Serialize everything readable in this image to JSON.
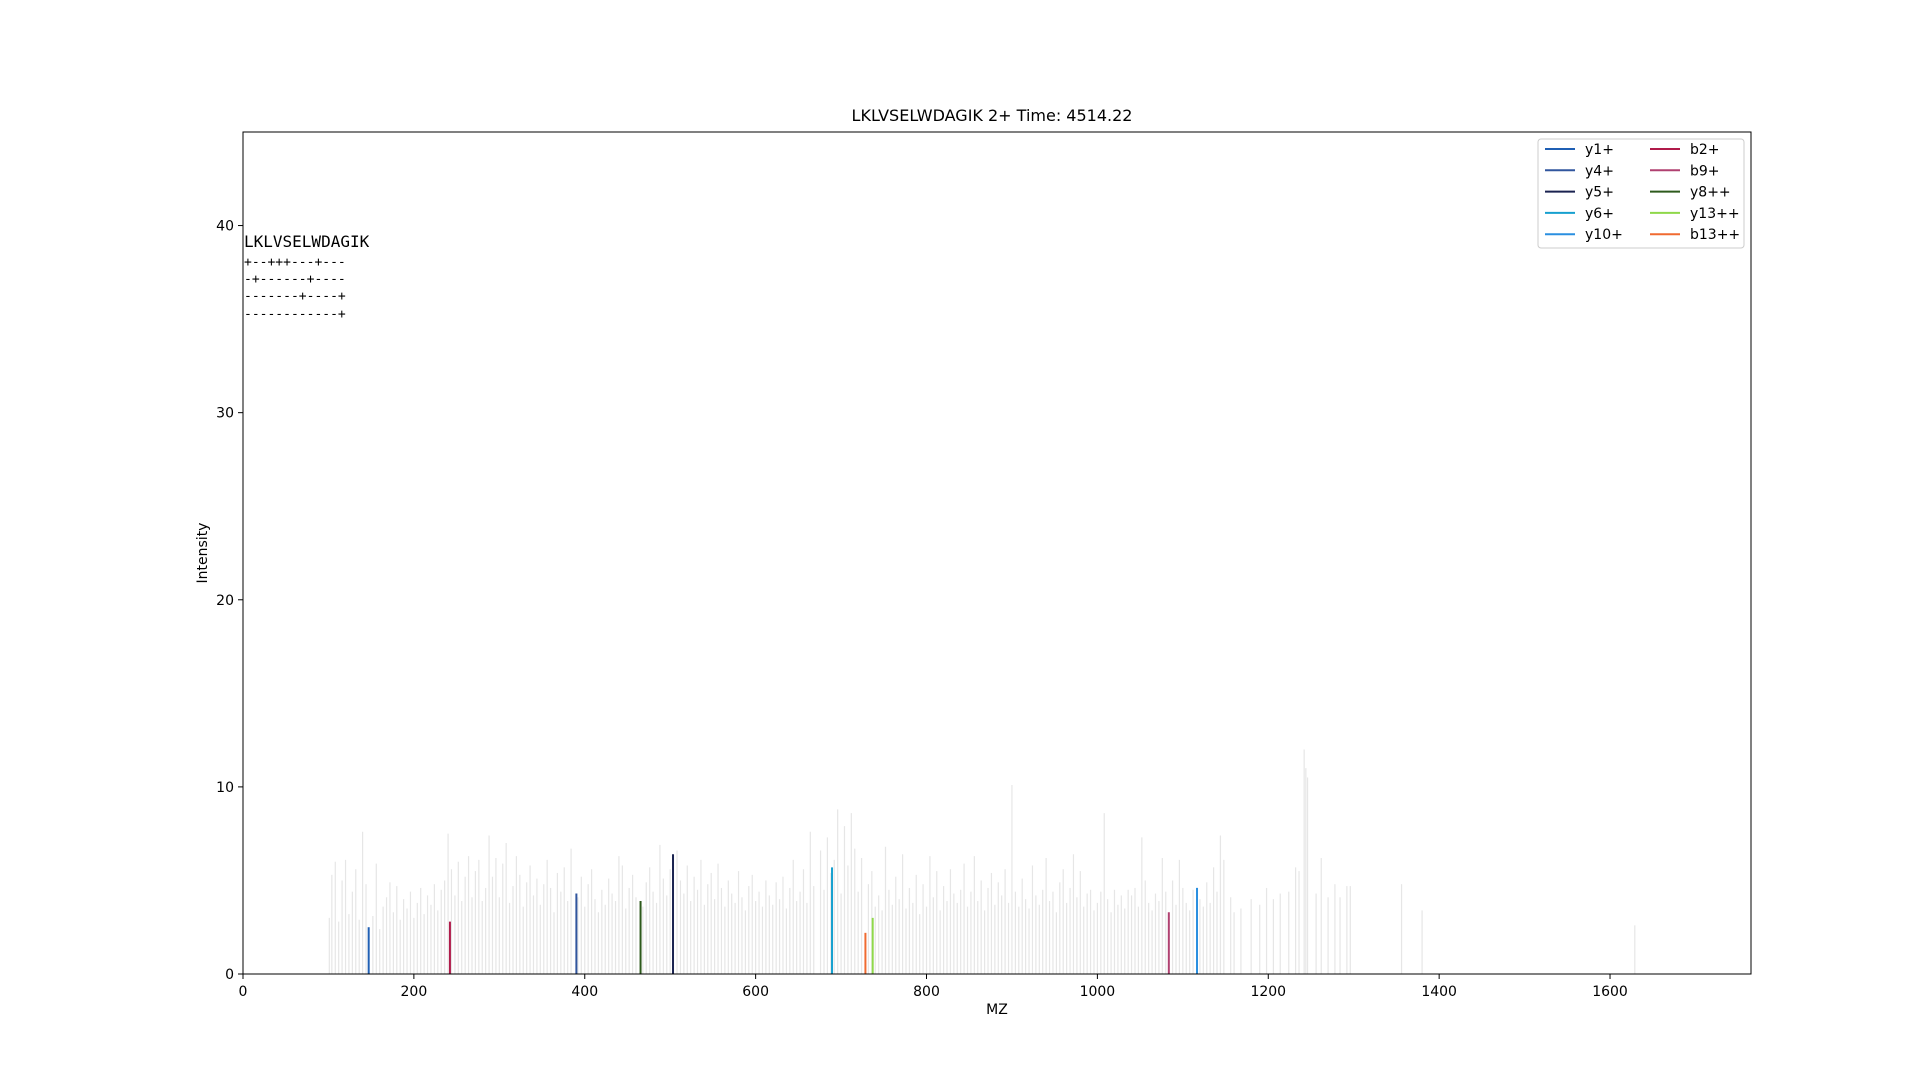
{
  "chart_data": {
    "type": "bar",
    "title": "LKLVSELWDAGIK  2+ Time: 4514.22",
    "xlabel": "MZ",
    "ylabel": "Intensity",
    "xlim": [
      0,
      1765
    ],
    "ylim": [
      0,
      45
    ],
    "x_ticks": [
      "0",
      "200",
      "400",
      "600",
      "800",
      "1000",
      "1200",
      "1400",
      "1600"
    ],
    "y_ticks": [
      "0",
      "10",
      "20",
      "30",
      "40"
    ],
    "legend_position": "top-right",
    "background_peak_color": "#e6e6e6",
    "background_peaks": [
      [
        101,
        3.0
      ],
      [
        104,
        5.3
      ],
      [
        108,
        6.0
      ],
      [
        112,
        2.8
      ],
      [
        116,
        5.0
      ],
      [
        120,
        6.1
      ],
      [
        124,
        3.2
      ],
      [
        128,
        4.4
      ],
      [
        132,
        5.6
      ],
      [
        136,
        2.9
      ],
      [
        140,
        7.6
      ],
      [
        144,
        4.8
      ],
      [
        152,
        3.1
      ],
      [
        156,
        5.9
      ],
      [
        160,
        2.4
      ],
      [
        164,
        3.6
      ],
      [
        168,
        4.1
      ],
      [
        172,
        4.9
      ],
      [
        176,
        3.3
      ],
      [
        180,
        4.7
      ],
      [
        184,
        2.9
      ],
      [
        188,
        4.0
      ],
      [
        192,
        3.5
      ],
      [
        196,
        4.4
      ],
      [
        200,
        3.0
      ],
      [
        204,
        3.8
      ],
      [
        208,
        4.6
      ],
      [
        212,
        3.2
      ],
      [
        216,
        4.2
      ],
      [
        220,
        3.7
      ],
      [
        224,
        4.8
      ],
      [
        228,
        3.4
      ],
      [
        232,
        4.5
      ],
      [
        236,
        5.0
      ],
      [
        240,
        7.5
      ],
      [
        244,
        5.6
      ],
      [
        248,
        4.2
      ],
      [
        252,
        6.0
      ],
      [
        256,
        3.9
      ],
      [
        260,
        5.2
      ],
      [
        264,
        6.3
      ],
      [
        268,
        4.1
      ],
      [
        272,
        5.5
      ],
      [
        276,
        6.1
      ],
      [
        280,
        3.9
      ],
      [
        284,
        4.6
      ],
      [
        288,
        7.4
      ],
      [
        292,
        5.2
      ],
      [
        296,
        6.2
      ],
      [
        300,
        4.1
      ],
      [
        304,
        5.9
      ],
      [
        308,
        7.0
      ],
      [
        312,
        3.8
      ],
      [
        316,
        4.7
      ],
      [
        320,
        6.3
      ],
      [
        324,
        5.3
      ],
      [
        328,
        3.6
      ],
      [
        332,
        4.9
      ],
      [
        336,
        5.8
      ],
      [
        340,
        4.2
      ],
      [
        344,
        5.1
      ],
      [
        348,
        3.7
      ],
      [
        352,
        4.8
      ],
      [
        356,
        6.1
      ],
      [
        360,
        4.6
      ],
      [
        364,
        3.3
      ],
      [
        368,
        5.4
      ],
      [
        372,
        4.4
      ],
      [
        376,
        5.7
      ],
      [
        380,
        3.9
      ],
      [
        384,
        6.7
      ],
      [
        392,
        4.1
      ],
      [
        396,
        5.2
      ],
      [
        400,
        3.6
      ],
      [
        404,
        4.8
      ],
      [
        408,
        5.6
      ],
      [
        412,
        4.0
      ],
      [
        416,
        3.3
      ],
      [
        420,
        4.5
      ],
      [
        424,
        3.7
      ],
      [
        428,
        5.1
      ],
      [
        432,
        4.3
      ],
      [
        436,
        3.9
      ],
      [
        440,
        6.3
      ],
      [
        444,
        5.8
      ],
      [
        448,
        3.5
      ],
      [
        452,
        4.6
      ],
      [
        456,
        5.3
      ],
      [
        460,
        4.1
      ],
      [
        468,
        3.6
      ],
      [
        472,
        4.9
      ],
      [
        476,
        5.7
      ],
      [
        480,
        4.4
      ],
      [
        484,
        3.8
      ],
      [
        488,
        6.9
      ],
      [
        492,
        5.1
      ],
      [
        496,
        4.2
      ],
      [
        500,
        5.6
      ],
      [
        508,
        6.6
      ],
      [
        512,
        5.0
      ],
      [
        516,
        4.3
      ],
      [
        520,
        5.8
      ],
      [
        524,
        3.9
      ],
      [
        528,
        5.2
      ],
      [
        532,
        4.5
      ],
      [
        536,
        6.1
      ],
      [
        540,
        3.7
      ],
      [
        544,
        4.8
      ],
      [
        548,
        5.4
      ],
      [
        552,
        4.0
      ],
      [
        556,
        5.9
      ],
      [
        560,
        4.6
      ],
      [
        564,
        3.6
      ],
      [
        568,
        5.0
      ],
      [
        572,
        4.3
      ],
      [
        576,
        3.8
      ],
      [
        580,
        5.5
      ],
      [
        584,
        4.1
      ],
      [
        588,
        3.4
      ],
      [
        592,
        4.7
      ],
      [
        596,
        5.3
      ],
      [
        600,
        3.9
      ],
      [
        604,
        4.4
      ],
      [
        608,
        3.6
      ],
      [
        612,
        5.0
      ],
      [
        616,
        4.2
      ],
      [
        620,
        3.7
      ],
      [
        624,
        4.9
      ],
      [
        628,
        4.0
      ],
      [
        632,
        5.2
      ],
      [
        636,
        3.5
      ],
      [
        640,
        4.6
      ],
      [
        644,
        6.1
      ],
      [
        648,
        3.9
      ],
      [
        652,
        4.4
      ],
      [
        656,
        5.6
      ],
      [
        660,
        3.8
      ],
      [
        664,
        7.6
      ],
      [
        668,
        4.7
      ],
      [
        676,
        6.6
      ],
      [
        680,
        4.5
      ],
      [
        684,
        7.3
      ],
      [
        688,
        5.4
      ],
      [
        692,
        6.1
      ],
      [
        696,
        8.8
      ],
      [
        700,
        4.3
      ],
      [
        704,
        7.9
      ],
      [
        708,
        5.8
      ],
      [
        712,
        8.6
      ],
      [
        716,
        6.7
      ],
      [
        720,
        4.4
      ],
      [
        724,
        6.2
      ],
      [
        732,
        4.8
      ],
      [
        736,
        5.5
      ],
      [
        740,
        3.6
      ],
      [
        744,
        4.2
      ],
      [
        748,
        3.4
      ],
      [
        752,
        6.8
      ],
      [
        756,
        4.5
      ],
      [
        760,
        3.7
      ],
      [
        764,
        5.2
      ],
      [
        768,
        4.0
      ],
      [
        772,
        6.4
      ],
      [
        776,
        3.5
      ],
      [
        780,
        4.6
      ],
      [
        784,
        3.8
      ],
      [
        788,
        5.3
      ],
      [
        792,
        3.2
      ],
      [
        796,
        4.8
      ],
      [
        800,
        3.6
      ],
      [
        804,
        6.3
      ],
      [
        808,
        4.1
      ],
      [
        812,
        5.5
      ],
      [
        816,
        3.4
      ],
      [
        820,
        4.7
      ],
      [
        824,
        3.9
      ],
      [
        828,
        5.6
      ],
      [
        832,
        4.3
      ],
      [
        836,
        3.8
      ],
      [
        840,
        4.5
      ],
      [
        844,
        5.9
      ],
      [
        848,
        3.6
      ],
      [
        852,
        4.4
      ],
      [
        856,
        6.3
      ],
      [
        860,
        3.9
      ],
      [
        864,
        5.0
      ],
      [
        868,
        3.4
      ],
      [
        872,
        4.6
      ],
      [
        876,
        5.4
      ],
      [
        880,
        3.7
      ],
      [
        884,
        4.9
      ],
      [
        888,
        4.2
      ],
      [
        892,
        5.6
      ],
      [
        896,
        3.8
      ],
      [
        900,
        10.1
      ],
      [
        904,
        4.4
      ],
      [
        908,
        3.6
      ],
      [
        912,
        5.1
      ],
      [
        916,
        4.0
      ],
      [
        920,
        3.5
      ],
      [
        924,
        5.8
      ],
      [
        928,
        4.2
      ],
      [
        932,
        3.7
      ],
      [
        936,
        4.5
      ],
      [
        940,
        6.2
      ],
      [
        944,
        3.9
      ],
      [
        948,
        4.4
      ],
      [
        952,
        3.3
      ],
      [
        956,
        4.9
      ],
      [
        960,
        5.6
      ],
      [
        964,
        3.8
      ],
      [
        968,
        4.6
      ],
      [
        972,
        6.4
      ],
      [
        976,
        4.1
      ],
      [
        980,
        5.5
      ],
      [
        984,
        3.6
      ],
      [
        988,
        4.3
      ],
      [
        992,
        4.5
      ],
      [
        996,
        3.4
      ],
      [
        1000,
        3.8
      ],
      [
        1004,
        4.4
      ],
      [
        1008,
        8.6
      ],
      [
        1012,
        4.0
      ],
      [
        1016,
        3.3
      ],
      [
        1020,
        4.5
      ],
      [
        1024,
        3.7
      ],
      [
        1028,
        4.2
      ],
      [
        1032,
        3.5
      ],
      [
        1036,
        4.5
      ],
      [
        1040,
        4.2
      ],
      [
        1044,
        4.6
      ],
      [
        1048,
        3.6
      ],
      [
        1052,
        7.3
      ],
      [
        1056,
        5.0
      ],
      [
        1060,
        3.8
      ],
      [
        1064,
        3.4
      ],
      [
        1068,
        4.3
      ],
      [
        1072,
        3.9
      ],
      [
        1076,
        6.2
      ],
      [
        1080,
        4.4
      ],
      [
        1088,
        5.0
      ],
      [
        1092,
        3.7
      ],
      [
        1096,
        6.1
      ],
      [
        1100,
        4.6
      ],
      [
        1104,
        3.8
      ],
      [
        1108,
        3.4
      ],
      [
        1112,
        4.5
      ],
      [
        1120,
        4.0
      ],
      [
        1124,
        3.6
      ],
      [
        1128,
        4.9
      ],
      [
        1132,
        3.8
      ],
      [
        1136,
        5.7
      ],
      [
        1140,
        4.4
      ],
      [
        1144,
        7.4
      ],
      [
        1148,
        6.1
      ],
      [
        1156,
        4.1
      ],
      [
        1160,
        3.3
      ],
      [
        1168,
        3.5
      ],
      [
        1180,
        4.0
      ],
      [
        1190,
        3.7
      ],
      [
        1198,
        4.6
      ],
      [
        1206,
        4.0
      ],
      [
        1214,
        4.3
      ],
      [
        1224,
        4.4
      ],
      [
        1232,
        5.7
      ],
      [
        1236,
        5.5
      ],
      [
        1242,
        12.0
      ],
      [
        1244,
        11.0
      ],
      [
        1246,
        10.5
      ],
      [
        1256,
        4.3
      ],
      [
        1262,
        6.2
      ],
      [
        1270,
        4.1
      ],
      [
        1278,
        4.8
      ],
      [
        1284,
        4.1
      ],
      [
        1292,
        4.7
      ],
      [
        1296,
        4.7
      ],
      [
        1356,
        4.8
      ],
      [
        1380,
        3.4
      ],
      [
        1629,
        2.6
      ]
    ],
    "series": [
      {
        "name": "y1+",
        "color": "#1f5fb4",
        "mz": 147.1,
        "intensity": 2.5
      },
      {
        "name": "y4+",
        "color": "#31569e",
        "mz": 390.2,
        "intensity": 4.3
      },
      {
        "name": "y5+",
        "color": "#1a2350",
        "mz": 503.3,
        "intensity": 6.4
      },
      {
        "name": "y6+",
        "color": "#17a0cf",
        "mz": 689.4,
        "intensity": 5.7
      },
      {
        "name": "y10+",
        "color": "#2a8fe0",
        "mz": 1116.6,
        "intensity": 4.6
      },
      {
        "name": "b2+",
        "color": "#b01a4a",
        "mz": 242.2,
        "intensity": 2.8
      },
      {
        "name": "b9+",
        "color": "#b04070",
        "mz": 1083.6,
        "intensity": 3.3
      },
      {
        "name": "y8++",
        "color": "#2e5a1c",
        "mz": 465.3,
        "intensity": 3.9
      },
      {
        "name": "y13++",
        "color": "#8fd84a",
        "mz": 737.0,
        "intensity": 3.0
      },
      {
        "name": "b13++",
        "color": "#f06a30",
        "mz": 728.5,
        "intensity": 2.2
      }
    ],
    "annotation": {
      "sequence": "LKLVSELWDAGIK",
      "rows": [
        "+--+++---+---",
        "-+------+----",
        "-------+----+",
        "------------+"
      ]
    }
  }
}
